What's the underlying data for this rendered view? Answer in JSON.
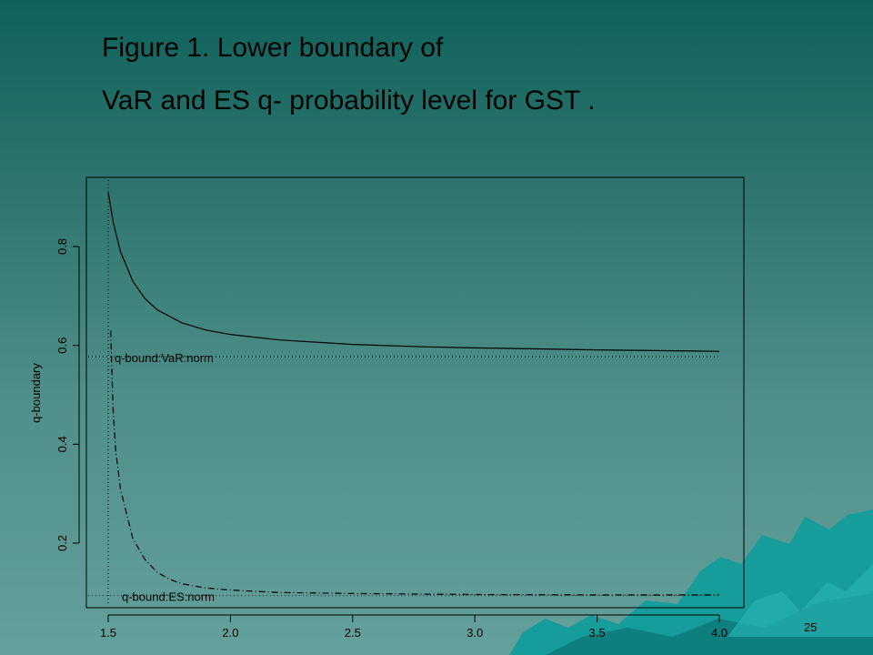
{
  "slide": {
    "title_line1": "Figure 1. Lower boundary  of",
    "title_line2": "VaR and ES q- probability level for GST .",
    "page_number": "25"
  },
  "colors": {
    "background_top": "#0f625b",
    "background_bottom": "#64a09c",
    "decoration": "#17a3a3",
    "ink": "#000000"
  },
  "chart_data": {
    "type": "line",
    "xlabel": "",
    "ylabel": "q-boundary",
    "xlim": [
      1.5,
      4.0
    ],
    "ylim": [
      0.08,
      0.93
    ],
    "x_ticks": [
      {
        "value": 1.5,
        "label": "1.5"
      },
      {
        "value": 2.0,
        "label": "2.0"
      },
      {
        "value": 2.5,
        "label": "2.5"
      },
      {
        "value": 3.0,
        "label": "3.0"
      },
      {
        "value": 3.5,
        "label": "3.5"
      },
      {
        "value": 4.0,
        "label": "4.0"
      }
    ],
    "y_ticks": [
      {
        "value": 0.2,
        "label": "0.2"
      },
      {
        "value": 0.4,
        "label": "0.4"
      },
      {
        "value": 0.6,
        "label": "0.6"
      },
      {
        "value": 0.8,
        "label": "0.8"
      }
    ],
    "grid": false,
    "legend": "none",
    "series": [
      {
        "style": "solid",
        "x": [
          1.5,
          1.52,
          1.55,
          1.6,
          1.65,
          1.7,
          1.8,
          1.9,
          2.0,
          2.2,
          2.5,
          2.8,
          3.0,
          3.5,
          4.0
        ],
        "y": [
          0.91,
          0.85,
          0.79,
          0.73,
          0.695,
          0.672,
          0.646,
          0.631,
          0.622,
          0.611,
          0.602,
          0.597,
          0.595,
          0.591,
          0.588
        ]
      },
      {
        "style": "dashdot",
        "x": [
          1.51,
          1.515,
          1.52,
          1.53,
          1.55,
          1.6,
          1.65,
          1.7,
          1.75,
          1.8,
          1.9,
          2.0,
          2.2,
          2.5,
          3.0,
          3.5,
          4.0
        ],
        "y": [
          0.63,
          0.55,
          0.47,
          0.39,
          0.31,
          0.21,
          0.167,
          0.141,
          0.127,
          0.118,
          0.109,
          0.105,
          0.1,
          0.098,
          0.096,
          0.095,
          0.095
        ]
      }
    ],
    "reference_lines": [
      {
        "y": 0.577,
        "label": "q-bound:VaR:norm"
      },
      {
        "y": 0.094,
        "label": "q-bound:ES:norm"
      }
    ],
    "vertical_reference": {
      "x": 1.5
    }
  }
}
